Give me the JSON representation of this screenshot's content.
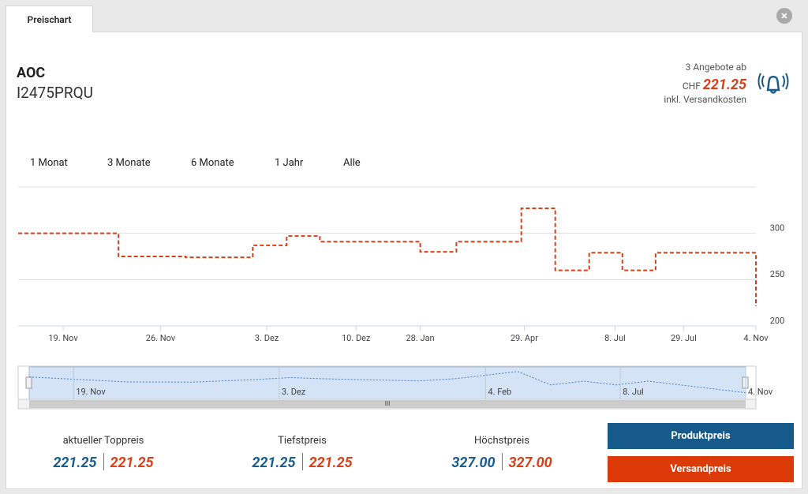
{
  "tab": "Preischart",
  "product": {
    "brand": "AOC",
    "model": "I2475PRQU"
  },
  "offer": {
    "count_text": "3 Angebote ab",
    "currency": "CHF",
    "price": "221.25",
    "note": "inkl. Versandkosten"
  },
  "ranges": [
    "1 Monat",
    "3 Monate",
    "6 Monate",
    "1 Jahr",
    "Alle"
  ],
  "chart_data": {
    "type": "line",
    "step": true,
    "x": [
      0,
      13.6,
      22.7,
      31.8,
      36.4,
      40.9,
      54.5,
      59.4,
      68.2,
      72.8,
      77.4,
      81.9,
      86.4,
      100
    ],
    "series": [
      {
        "color": "#d9401a",
        "values": [
          300,
          275,
          274,
          287,
          297,
          291,
          280,
          291,
          327,
          260,
          279,
          260,
          279,
          221.25
        ]
      }
    ],
    "xlim": [
      0,
      100
    ],
    "xticks": [
      {
        "value": 6.1,
        "label": "19. Nov"
      },
      {
        "value": 19.3,
        "label": "26. Nov"
      },
      {
        "value": 33.7,
        "label": "3. Dez"
      },
      {
        "value": 45.8,
        "label": "10. Dez"
      },
      {
        "value": 54.5,
        "label": "28. Jan"
      },
      {
        "value": 68.6,
        "label": "29. Apr"
      },
      {
        "value": 80.9,
        "label": "8. Jul"
      },
      {
        "value": 90.2,
        "label": "29. Jul"
      },
      {
        "value": 100,
        "label": "4. Nov"
      }
    ],
    "ylim": [
      200,
      350
    ],
    "yticks": [
      200,
      250,
      300
    ],
    "grid": true,
    "navigator_xticks": [
      {
        "value": 6.2,
        "label": "19. Nov"
      },
      {
        "value": 34.9,
        "label": "3. Dez"
      },
      {
        "value": 63.7,
        "label": "4. Feb"
      },
      {
        "value": 82.5,
        "label": "8. Jul"
      },
      {
        "value": 100,
        "label": "4. Nov"
      }
    ]
  },
  "stats": [
    {
      "label": "aktueller Toppreis",
      "product": "221.25",
      "shipping": "221.25"
    },
    {
      "label": "Tiefstpreis",
      "product": "221.25",
      "shipping": "221.25"
    },
    {
      "label": "Höchstpreis",
      "product": "327.00",
      "shipping": "327.00"
    }
  ],
  "buttons": [
    "Produktpreis",
    "Versandpreis"
  ]
}
